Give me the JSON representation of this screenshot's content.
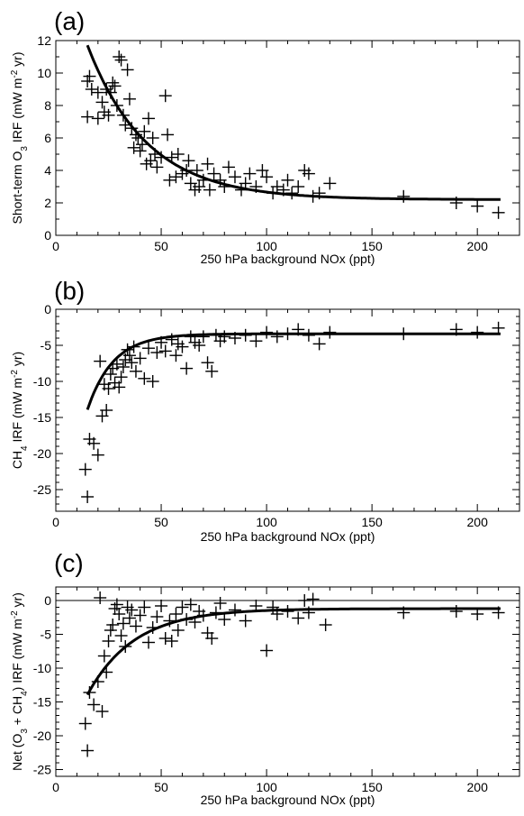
{
  "chart_data": [
    {
      "type": "scatter",
      "panel": "(a)",
      "xlabel": "250 hPa background NOx (ppt)",
      "ylabel_parts": {
        "before": "Short-term O",
        "sub": "3",
        "after": " IRF (mW m",
        "sup": "-2",
        "end": " yr)"
      },
      "xlim": [
        0,
        220
      ],
      "ylim": [
        0,
        12
      ],
      "xticks": [
        "0",
        "50",
        "100",
        "150",
        "200"
      ],
      "yticks": [
        "0",
        "2",
        "4",
        "6",
        "8",
        "10",
        "12"
      ],
      "zero_line": false,
      "fit": {
        "base": 2.2,
        "amp": 16.2,
        "k": 0.0355
      },
      "points": [
        [
          15,
          9.5
        ],
        [
          16,
          9.8
        ],
        [
          15,
          7.3
        ],
        [
          17,
          9.0
        ],
        [
          20,
          7.2
        ],
        [
          20,
          8.8
        ],
        [
          22,
          8.2
        ],
        [
          23,
          7.6
        ],
        [
          24,
          9.0
        ],
        [
          25,
          7.4
        ],
        [
          26,
          8.8
        ],
        [
          27,
          9.4
        ],
        [
          28,
          9.2
        ],
        [
          30,
          11.0
        ],
        [
          31,
          10.8
        ],
        [
          29,
          8.0
        ],
        [
          32,
          7.4
        ],
        [
          33,
          6.8
        ],
        [
          34,
          10.2
        ],
        [
          35,
          8.4
        ],
        [
          36,
          6.6
        ],
        [
          37,
          5.4
        ],
        [
          38,
          6.2
        ],
        [
          39,
          6.0
        ],
        [
          40,
          5.2
        ],
        [
          41,
          5.6
        ],
        [
          42,
          6.4
        ],
        [
          43,
          4.4
        ],
        [
          44,
          7.2
        ],
        [
          45,
          4.6
        ],
        [
          46,
          6.0
        ],
        [
          47,
          5.0
        ],
        [
          48,
          4.2
        ],
        [
          50,
          4.8
        ],
        [
          52,
          8.6
        ],
        [
          53,
          6.2
        ],
        [
          54,
          3.4
        ],
        [
          55,
          4.8
        ],
        [
          57,
          3.6
        ],
        [
          58,
          5.0
        ],
        [
          60,
          3.8
        ],
        [
          62,
          4.0
        ],
        [
          63,
          4.6
        ],
        [
          64,
          3.2
        ],
        [
          66,
          2.8
        ],
        [
          67,
          4.0
        ],
        [
          68,
          3.0
        ],
        [
          70,
          3.4
        ],
        [
          72,
          4.4
        ],
        [
          73,
          2.8
        ],
        [
          75,
          3.8
        ],
        [
          78,
          3.4
        ],
        [
          80,
          3.0
        ],
        [
          82,
          4.2
        ],
        [
          85,
          3.6
        ],
        [
          88,
          2.8
        ],
        [
          90,
          3.2
        ],
        [
          92,
          3.8
        ],
        [
          95,
          3.0
        ],
        [
          98,
          4.0
        ],
        [
          100,
          3.6
        ],
        [
          103,
          2.6
        ],
        [
          105,
          3.0
        ],
        [
          108,
          2.8
        ],
        [
          110,
          3.4
        ],
        [
          112,
          2.6
        ],
        [
          115,
          3.0
        ],
        [
          118,
          4.0
        ],
        [
          120,
          3.8
        ],
        [
          122,
          2.4
        ],
        [
          125,
          2.6
        ],
        [
          130,
          3.2
        ],
        [
          165,
          2.4
        ],
        [
          190,
          2.0
        ],
        [
          200,
          1.8
        ],
        [
          210,
          1.4
        ]
      ]
    },
    {
      "type": "scatter",
      "panel": "(b)",
      "xlabel": "250 hPa background NOx (ppt)",
      "ylabel_parts": {
        "before": "CH",
        "sub": "4",
        "after": " IRF (mW m",
        "sup": "-2",
        "end": " yr)"
      },
      "xlim": [
        0,
        220
      ],
      "ylim": [
        -28,
        0
      ],
      "xticks": [
        "0",
        "50",
        "100",
        "150",
        "200"
      ],
      "yticks": [
        "0",
        "-5",
        "-10",
        "-15",
        "-20",
        "-25"
      ],
      "zero_line": false,
      "fit": {
        "base": -3.4,
        "amp": -36.0,
        "k": 0.082
      },
      "points": [
        [
          14,
          -22.2
        ],
        [
          15,
          -26.0
        ],
        [
          16,
          -18.0
        ],
        [
          18,
          -18.6
        ],
        [
          20,
          -20.2
        ],
        [
          21,
          -7.2
        ],
        [
          22,
          -14.8
        ],
        [
          23,
          -10.4
        ],
        [
          24,
          -14.0
        ],
        [
          25,
          -11.0
        ],
        [
          26,
          -9.0
        ],
        [
          27,
          -8.2
        ],
        [
          28,
          -10.2
        ],
        [
          29,
          -7.6
        ],
        [
          30,
          -10.8
        ],
        [
          31,
          -9.4
        ],
        [
          32,
          -8.0
        ],
        [
          33,
          -7.0
        ],
        [
          34,
          -5.6
        ],
        [
          35,
          -6.4
        ],
        [
          36,
          -7.4
        ],
        [
          37,
          -5.2
        ],
        [
          38,
          -8.6
        ],
        [
          40,
          -6.8
        ],
        [
          42,
          -9.6
        ],
        [
          44,
          -5.4
        ],
        [
          46,
          -10.0
        ],
        [
          48,
          -6.0
        ],
        [
          50,
          -4.6
        ],
        [
          52,
          -5.8
        ],
        [
          55,
          -4.2
        ],
        [
          57,
          -6.4
        ],
        [
          58,
          -4.8
        ],
        [
          60,
          -5.2
        ],
        [
          62,
          -8.2
        ],
        [
          64,
          -3.8
        ],
        [
          66,
          -4.6
        ],
        [
          68,
          -5.0
        ],
        [
          70,
          -3.8
        ],
        [
          72,
          -7.4
        ],
        [
          74,
          -8.6
        ],
        [
          76,
          -3.6
        ],
        [
          78,
          -4.4
        ],
        [
          80,
          -3.8
        ],
        [
          85,
          -4.0
        ],
        [
          90,
          -3.6
        ],
        [
          95,
          -4.4
        ],
        [
          100,
          -3.2
        ],
        [
          105,
          -3.8
        ],
        [
          110,
          -3.4
        ],
        [
          115,
          -2.8
        ],
        [
          120,
          -3.6
        ],
        [
          125,
          -4.8
        ],
        [
          130,
          -3.2
        ],
        [
          165,
          -3.4
        ],
        [
          190,
          -2.8
        ],
        [
          200,
          -3.2
        ],
        [
          210,
          -2.6
        ]
      ]
    },
    {
      "type": "scatter",
      "panel": "(c)",
      "xlabel": "250 hPa background NOx (ppt)",
      "ylabel_parts": {
        "before": "Net (O",
        "sub": "3",
        "mid": " + CH",
        "sub2": "4",
        "after": ") IRF (mW m",
        "sup": "-2",
        "end": " yr)"
      },
      "xlim": [
        0,
        220
      ],
      "ylim": [
        -26,
        2
      ],
      "xticks": [
        "0",
        "50",
        "100",
        "150",
        "200"
      ],
      "yticks": [
        "0",
        "-5",
        "-10",
        "-15",
        "-20",
        "-25"
      ],
      "zero_line": true,
      "fit": {
        "base": -1.2,
        "amp": -25.0,
        "k": 0.045
      },
      "points": [
        [
          14,
          -18.2
        ],
        [
          15,
          -22.2
        ],
        [
          16,
          -13.6
        ],
        [
          18,
          -15.4
        ],
        [
          20,
          -12.0
        ],
        [
          21,
          0.4
        ],
        [
          22,
          -16.4
        ],
        [
          23,
          -8.2
        ],
        [
          24,
          -10.6
        ],
        [
          25,
          -6.0
        ],
        [
          26,
          -4.4
        ],
        [
          27,
          -3.6
        ],
        [
          28,
          -1.2
        ],
        [
          29,
          -0.6
        ],
        [
          30,
          -2.0
        ],
        [
          31,
          -5.2
        ],
        [
          32,
          -3.4
        ],
        [
          33,
          -6.8
        ],
        [
          34,
          -1.0
        ],
        [
          35,
          -2.6
        ],
        [
          36,
          -1.4
        ],
        [
          38,
          -3.8
        ],
        [
          40,
          -2.2
        ],
        [
          42,
          -1.0
        ],
        [
          44,
          -6.2
        ],
        [
          46,
          -4.0
        ],
        [
          48,
          -2.4
        ],
        [
          50,
          -0.8
        ],
        [
          52,
          -5.6
        ],
        [
          54,
          -3.0
        ],
        [
          55,
          -6.0
        ],
        [
          57,
          -2.0
        ],
        [
          58,
          -4.4
        ],
        [
          60,
          -1.0
        ],
        [
          62,
          -2.8
        ],
        [
          64,
          -0.6
        ],
        [
          66,
          -3.2
        ],
        [
          68,
          -1.6
        ],
        [
          70,
          -2.2
        ],
        [
          72,
          -4.8
        ],
        [
          74,
          -5.6
        ],
        [
          76,
          -1.8
        ],
        [
          78,
          -0.4
        ],
        [
          80,
          -2.8
        ],
        [
          85,
          -1.4
        ],
        [
          90,
          -3.0
        ],
        [
          95,
          -0.8
        ],
        [
          100,
          -7.4
        ],
        [
          103,
          -1.0
        ],
        [
          105,
          -2.0
        ],
        [
          110,
          -1.6
        ],
        [
          115,
          -2.6
        ],
        [
          118,
          0.0
        ],
        [
          120,
          -1.8
        ],
        [
          122,
          0.2
        ],
        [
          128,
          -3.6
        ],
        [
          165,
          -1.8
        ],
        [
          190,
          -1.6
        ],
        [
          200,
          -2.0
        ],
        [
          210,
          -1.8
        ]
      ]
    }
  ]
}
